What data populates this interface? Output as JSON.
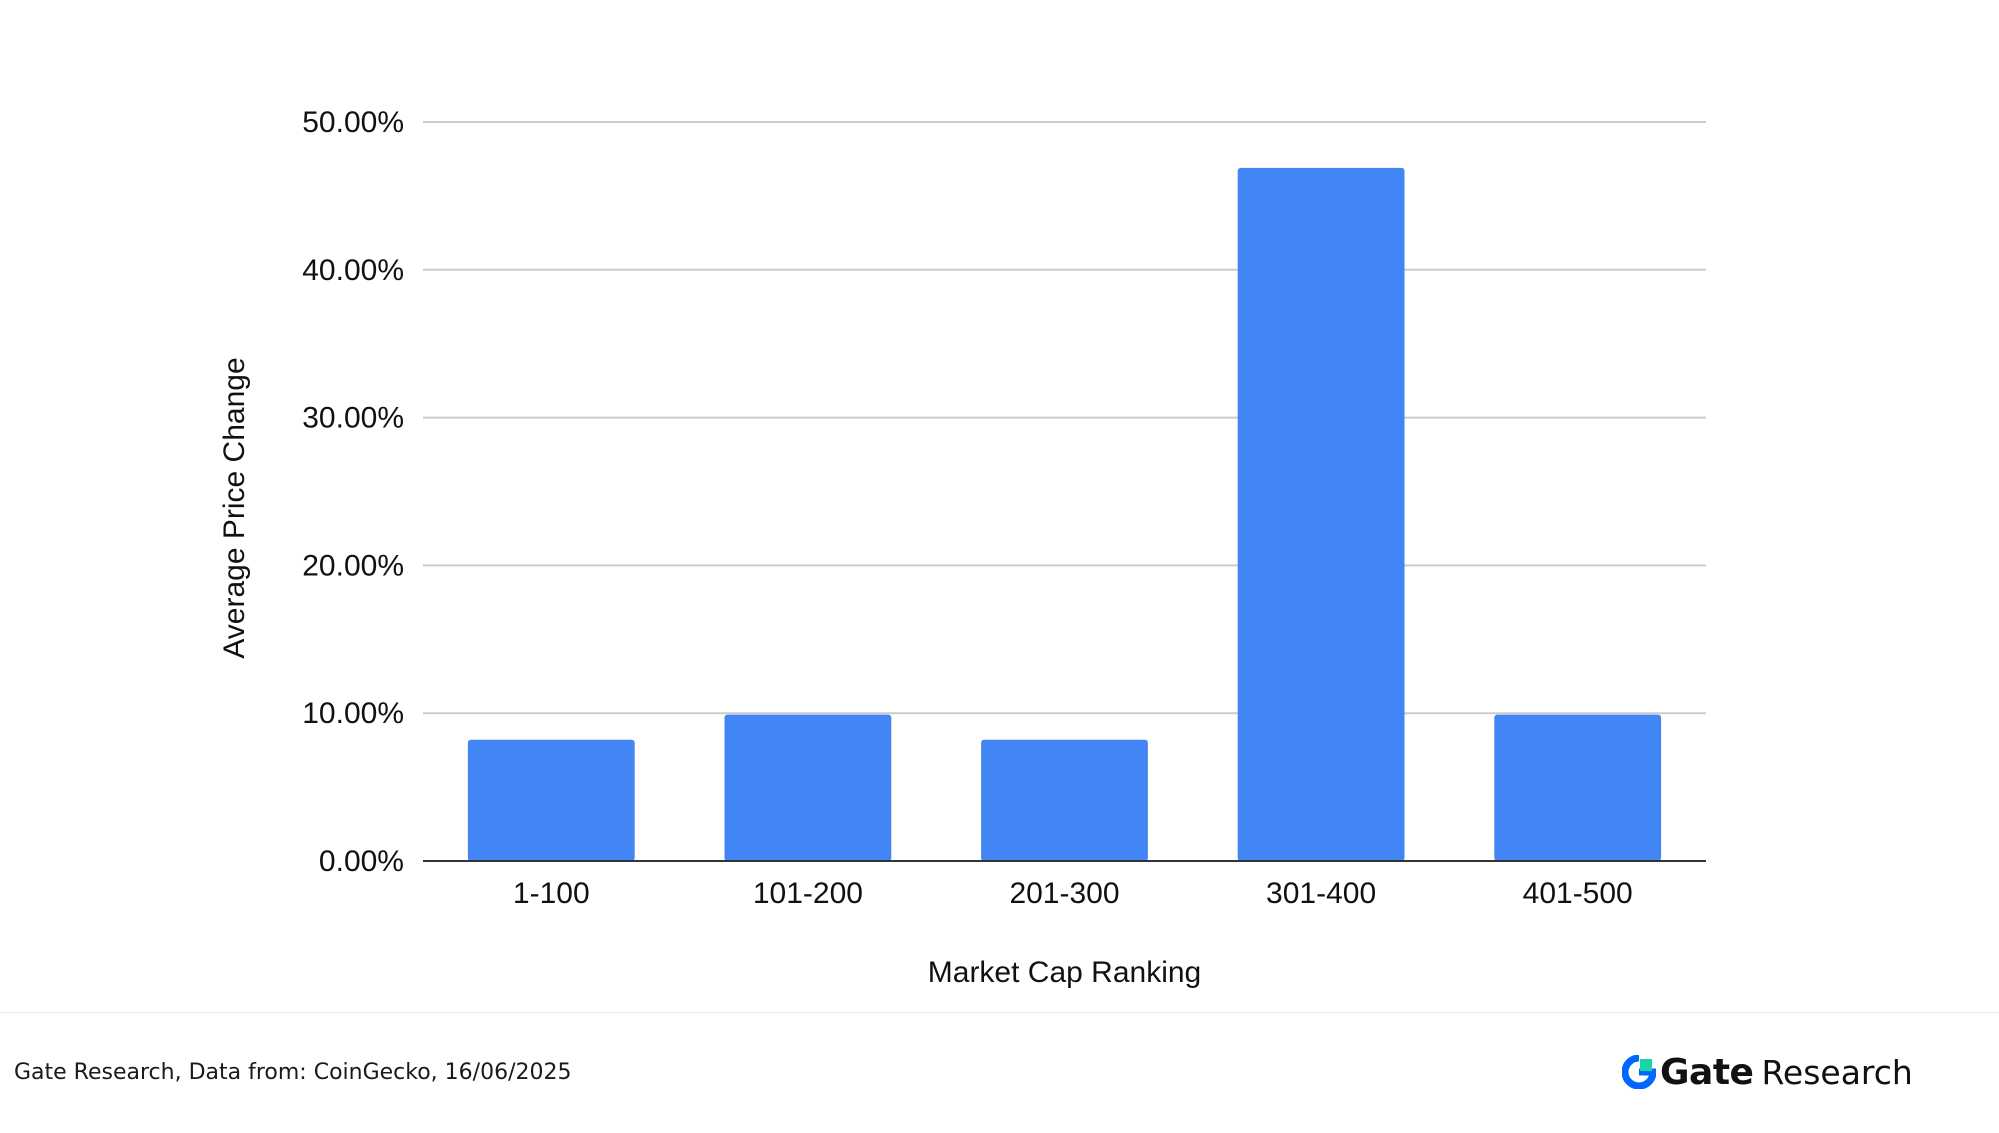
{
  "chart_data": {
    "type": "bar",
    "categories": [
      "1-100",
      "101-200",
      "201-300",
      "301-400",
      "401-500"
    ],
    "values": [
      8.2,
      9.9,
      8.2,
      46.9,
      9.9
    ],
    "xlabel": "Market Cap Ranking",
    "ylabel": "Average Price Change",
    "ylim": [
      0,
      50
    ],
    "yticks": [
      "0.00%",
      "10.00%",
      "20.00%",
      "30.00%",
      "40.00%",
      "50.00%"
    ],
    "grid": true,
    "legend": "none",
    "bar_color": "#4285f4"
  },
  "footer": {
    "source": "Gate Research, Data from: CoinGecko, 16/06/2025",
    "brand_gate": "Gate",
    "brand_research": "Research",
    "brand_icon": "gate-logo-icon"
  }
}
